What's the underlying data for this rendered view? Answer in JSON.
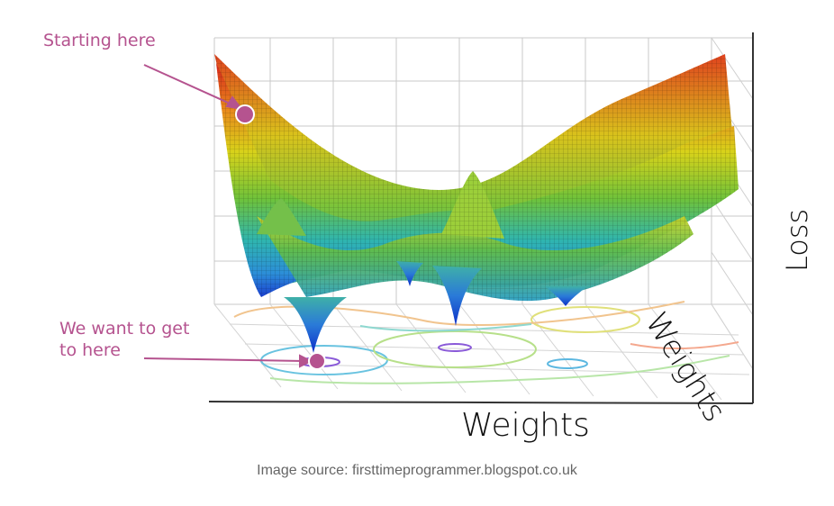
{
  "annotations": {
    "start": "Starting here",
    "goal_line1": "We want to get",
    "goal_line2": "to here"
  },
  "axes": {
    "x_label": "Weights",
    "y_label": "Weights",
    "z_label": "Loss"
  },
  "caption": "Image source: firsttimeprogrammer.blogspot.co.uk",
  "colors": {
    "annotation": "#b5538f",
    "surface_high": "#d8261c",
    "surface_mid": "#d8d21a",
    "surface_low": "#1f5fd8"
  }
}
